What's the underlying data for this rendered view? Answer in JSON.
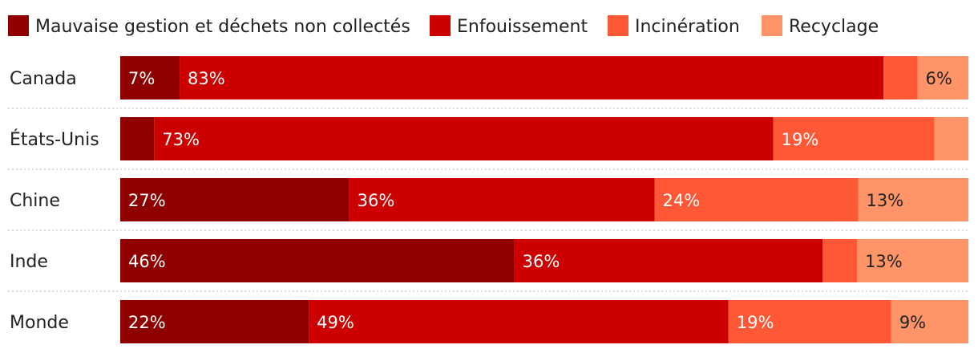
{
  "chart_data": {
    "type": "bar",
    "orientation": "horizontal",
    "stacked": "percent",
    "title": "",
    "xlabel": "",
    "ylabel": "",
    "xlim": [
      0,
      100
    ],
    "legend": "top-left",
    "grid": false,
    "categories": [
      "Canada",
      "États-Unis",
      "Chine",
      "Inde",
      "Monde"
    ],
    "series": [
      {
        "name": "Mauvaise gestion et déchets non collectés",
        "color": "#8e0000",
        "values": [
          7,
          4,
          27,
          46,
          22
        ],
        "labels": [
          "7%",
          "",
          "27%",
          "46%",
          "22%"
        ]
      },
      {
        "name": "Enfouissement",
        "color": "#cc0000",
        "values": [
          83,
          73,
          36,
          36,
          49
        ],
        "labels": [
          "83%",
          "73%",
          "36%",
          "36%",
          "49%"
        ]
      },
      {
        "name": "Incinération",
        "color": "#ff5836",
        "values": [
          4,
          19,
          24,
          4,
          19
        ],
        "labels": [
          "",
          "19%",
          "24%",
          "",
          "19%"
        ]
      },
      {
        "name": "Recyclage",
        "color": "#ff9468",
        "values": [
          6,
          4,
          13,
          13,
          9
        ],
        "labels": [
          "6%",
          "",
          "13%",
          "13%",
          "9%"
        ]
      }
    ]
  }
}
